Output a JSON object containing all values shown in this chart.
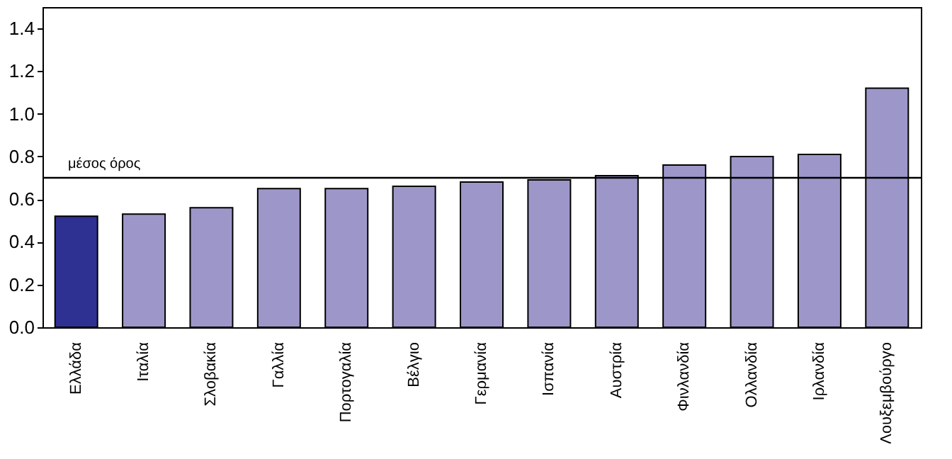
{
  "chart_data": {
    "type": "bar",
    "categories": [
      "Ελλάδα",
      "Ιταλία",
      "Σλοβακία",
      "Γαλλία",
      "Πορτογαλία",
      "Βέλγιο",
      "Γερμανία",
      "Ισπανία",
      "Αυστρία",
      "Φινλανδία",
      "Ολλανδία",
      "Ιρλανδία",
      "Λουξεμβούργο"
    ],
    "values": [
      0.52,
      0.53,
      0.56,
      0.65,
      0.65,
      0.66,
      0.68,
      0.69,
      0.71,
      0.76,
      0.8,
      0.81,
      1.12
    ],
    "colors": [
      "#2e3192",
      "#9d97c9",
      "#9d97c9",
      "#9d97c9",
      "#9d97c9",
      "#9d97c9",
      "#9d97c9",
      "#9d97c9",
      "#9d97c9",
      "#9d97c9",
      "#9d97c9",
      "#9d97c9",
      "#9d97c9"
    ],
    "ylim": [
      0,
      1.5
    ],
    "yticks": [
      {
        "value": 0,
        "label": "0.0"
      },
      0.2,
      0.4,
      0.6,
      0.8,
      {
        "value": 1,
        "label": "1.0"
      },
      1.2,
      1.4
    ],
    "ref_lines": [
      {
        "axis": "y",
        "value": 0.7,
        "label": "μέσος όρος",
        "color": "#000000"
      }
    ],
    "grid": false
  }
}
